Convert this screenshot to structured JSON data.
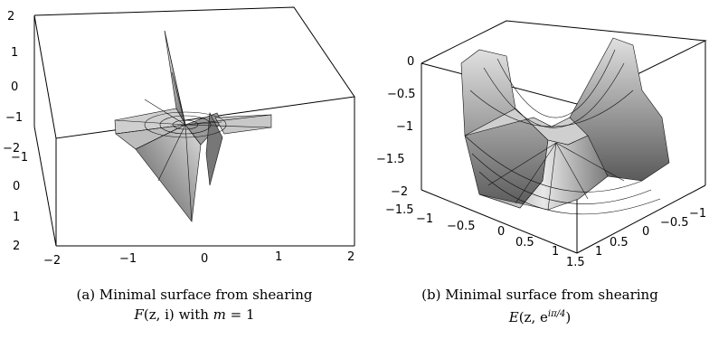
{
  "figure_a": {
    "caption_line1": "(a) Minimal surface from shearing",
    "caption_func": "F",
    "caption_args": "(z, i)",
    "caption_with": " with ",
    "caption_m": "m",
    "caption_m_value": " = 1",
    "z_ticks": [
      "2",
      "1",
      "0",
      "−1",
      "−2"
    ],
    "y_ticks": [
      "−1",
      "0",
      "1",
      "2"
    ],
    "x_ticks": [
      "−2",
      "−1",
      "0",
      "1",
      "2"
    ]
  },
  "figure_b": {
    "caption_line1": "(b) Minimal surface from shearing",
    "caption_func": "E",
    "caption_args_pre": "(z, e",
    "caption_exp": "iπ/4",
    "caption_args_post": ")",
    "z_ticks": [
      "0",
      "−0.5",
      "−1",
      "−1.5",
      "−2"
    ],
    "x_ticks": [
      "−1.5",
      "−1",
      "−0.5",
      "0",
      "0.5",
      "1",
      "1.5"
    ],
    "y_ticks": [
      "1",
      "0.5",
      "0",
      "−0.5",
      "−1"
    ]
  },
  "colors": {
    "surface_light": "#e8e8e8",
    "surface_dark": "#555555",
    "mesh": "#111111"
  }
}
